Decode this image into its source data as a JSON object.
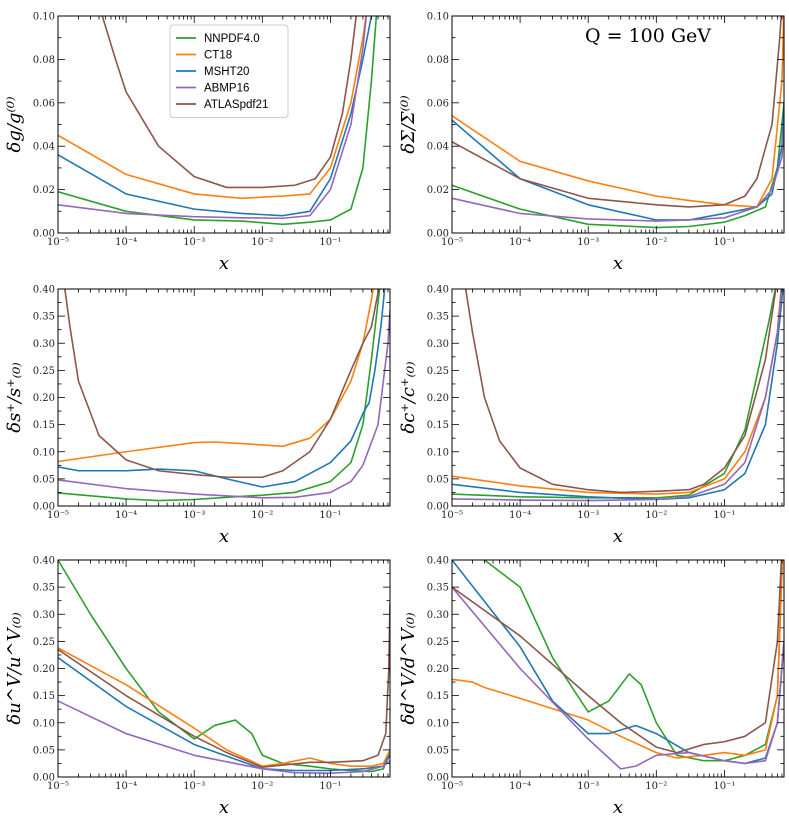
{
  "figure": {
    "annotation": "Q = 100 GeV"
  },
  "legend": [
    {
      "name": "NNPDF4.0",
      "color": "#2ca02c"
    },
    {
      "name": "CT18",
      "color": "#ff7f0e"
    },
    {
      "name": "MSHT20",
      "color": "#1f77b4"
    },
    {
      "name": "ABMP16",
      "color": "#9467bd"
    },
    {
      "name": "ATLASpdf21",
      "color": "#8c564b"
    }
  ],
  "chart_data": [
    {
      "type": "line",
      "id": "gluon",
      "title": "",
      "xlabel": "x",
      "ylabel": "δg/g⁽⁰⁾",
      "xscale": "log",
      "xlim": [
        1e-05,
        0.75
      ],
      "ylim": [
        0,
        0.1
      ],
      "xticks": [
        "10⁻⁵",
        "10⁻⁴",
        "10⁻³",
        "10⁻²",
        "10⁻¹"
      ],
      "yticks": [
        "0.00",
        "0.02",
        "0.04",
        "0.06",
        "0.08",
        "0.10"
      ],
      "series": [
        {
          "name": "NNPDF4.0",
          "x": [
            1e-05,
            0.0001,
            0.001,
            0.005,
            0.02,
            0.05,
            0.1,
            0.2,
            0.3,
            0.4,
            0.5
          ],
          "y": [
            0.019,
            0.01,
            0.006,
            0.0055,
            0.004,
            0.005,
            0.006,
            0.011,
            0.03,
            0.07,
            0.11
          ]
        },
        {
          "name": "CT18",
          "x": [
            1e-05,
            0.0001,
            0.001,
            0.005,
            0.02,
            0.05,
            0.1,
            0.2,
            0.3,
            0.35
          ],
          "y": [
            0.045,
            0.027,
            0.018,
            0.016,
            0.017,
            0.018,
            0.03,
            0.06,
            0.09,
            0.105
          ]
        },
        {
          "name": "MSHT20",
          "x": [
            1e-05,
            0.0001,
            0.001,
            0.005,
            0.02,
            0.05,
            0.1,
            0.2,
            0.3,
            0.4,
            0.45
          ],
          "y": [
            0.036,
            0.018,
            0.011,
            0.009,
            0.008,
            0.01,
            0.025,
            0.055,
            0.08,
            0.1,
            0.105
          ]
        },
        {
          "name": "ABMP16",
          "x": [
            1e-05,
            0.0001,
            0.001,
            0.005,
            0.02,
            0.05,
            0.1,
            0.2,
            0.3,
            0.35
          ],
          "y": [
            0.013,
            0.009,
            0.0075,
            0.007,
            0.0068,
            0.008,
            0.02,
            0.05,
            0.085,
            0.105
          ]
        },
        {
          "name": "ATLASpdf21",
          "x": [
            4e-05,
            7e-05,
            0.0001,
            0.0003,
            0.001,
            0.003,
            0.01,
            0.03,
            0.06,
            0.1,
            0.15,
            0.2,
            0.25
          ],
          "y": [
            0.105,
            0.08,
            0.065,
            0.04,
            0.026,
            0.021,
            0.021,
            0.022,
            0.025,
            0.035,
            0.055,
            0.08,
            0.105
          ]
        }
      ]
    },
    {
      "type": "line",
      "id": "singlet",
      "title": "",
      "xlabel": "x",
      "ylabel": "δΣ/Σ⁽⁰⁾",
      "xscale": "log",
      "xlim": [
        1e-05,
        0.75
      ],
      "ylim": [
        0,
        0.1
      ],
      "xticks": [
        "10⁻⁵",
        "10⁻⁴",
        "10⁻³",
        "10⁻²",
        "10⁻¹"
      ],
      "yticks": [
        "0.00",
        "0.02",
        "0.04",
        "0.06",
        "0.08",
        "0.10"
      ],
      "series": [
        {
          "name": "NNPDF4.0",
          "x": [
            1e-05,
            0.0001,
            0.001,
            0.01,
            0.03,
            0.1,
            0.2,
            0.4,
            0.6,
            0.75
          ],
          "y": [
            0.022,
            0.011,
            0.004,
            0.0025,
            0.003,
            0.005,
            0.008,
            0.012,
            0.03,
            0.06
          ]
        },
        {
          "name": "CT18",
          "x": [
            1e-05,
            0.0001,
            0.001,
            0.01,
            0.03,
            0.1,
            0.3,
            0.5,
            0.7,
            0.75
          ],
          "y": [
            0.054,
            0.033,
            0.024,
            0.017,
            0.015,
            0.013,
            0.012,
            0.025,
            0.07,
            0.105
          ]
        },
        {
          "name": "MSHT20",
          "x": [
            1e-05,
            0.0001,
            0.001,
            0.01,
            0.03,
            0.1,
            0.3,
            0.5,
            0.7,
            0.75
          ],
          "y": [
            0.052,
            0.025,
            0.013,
            0.006,
            0.006,
            0.009,
            0.012,
            0.018,
            0.04,
            0.06
          ]
        },
        {
          "name": "ABMP16",
          "x": [
            1e-05,
            0.0001,
            0.001,
            0.01,
            0.03,
            0.1,
            0.3,
            0.5,
            0.7,
            0.75
          ],
          "y": [
            0.016,
            0.009,
            0.0065,
            0.0055,
            0.006,
            0.007,
            0.012,
            0.02,
            0.035,
            0.05
          ]
        },
        {
          "name": "ATLASpdf21",
          "x": [
            1e-05,
            0.0001,
            0.001,
            0.01,
            0.03,
            0.1,
            0.2,
            0.3,
            0.5,
            0.65,
            0.7
          ],
          "y": [
            0.042,
            0.025,
            0.016,
            0.013,
            0.012,
            0.013,
            0.017,
            0.025,
            0.05,
            0.09,
            0.105
          ]
        }
      ]
    },
    {
      "type": "line",
      "id": "strange",
      "title": "",
      "xlabel": "x",
      "ylabel": "δs⁺/s⁺₍₀₎",
      "xscale": "log",
      "xlim": [
        1e-05,
        0.75
      ],
      "ylim": [
        0,
        0.4
      ],
      "xticks": [
        "10⁻⁵",
        "10⁻⁴",
        "10⁻³",
        "10⁻²",
        "10⁻¹"
      ],
      "yticks": [
        "0.00",
        "0.05",
        "0.10",
        "0.15",
        "0.20",
        "0.25",
        "0.30",
        "0.35",
        "0.40"
      ],
      "series": [
        {
          "name": "NNPDF4.0",
          "x": [
            1e-05,
            0.0001,
            0.0003,
            0.001,
            0.003,
            0.01,
            0.03,
            0.1,
            0.2,
            0.3,
            0.4,
            0.55
          ],
          "y": [
            0.024,
            0.013,
            0.01,
            0.012,
            0.016,
            0.02,
            0.025,
            0.045,
            0.08,
            0.15,
            0.27,
            0.42
          ]
        },
        {
          "name": "CT18",
          "x": [
            1e-05,
            0.0001,
            0.001,
            0.002,
            0.005,
            0.02,
            0.05,
            0.1,
            0.2,
            0.3,
            0.4,
            0.45
          ],
          "y": [
            0.082,
            0.1,
            0.117,
            0.118,
            0.115,
            0.11,
            0.125,
            0.16,
            0.23,
            0.3,
            0.38,
            0.42
          ]
        },
        {
          "name": "MSHT20",
          "x": [
            1e-05,
            2e-05,
            0.0001,
            0.0003,
            0.001,
            0.003,
            0.01,
            0.03,
            0.1,
            0.2,
            0.3,
            0.33,
            0.37,
            0.45,
            0.55,
            0.65
          ],
          "y": [
            0.072,
            0.065,
            0.065,
            0.068,
            0.065,
            0.05,
            0.035,
            0.045,
            0.08,
            0.12,
            0.17,
            0.18,
            0.19,
            0.25,
            0.33,
            0.42
          ]
        },
        {
          "name": "ABMP16",
          "x": [
            1e-05,
            0.0001,
            0.001,
            0.01,
            0.03,
            0.1,
            0.2,
            0.3,
            0.5,
            0.7,
            0.75
          ],
          "y": [
            0.048,
            0.032,
            0.022,
            0.015,
            0.016,
            0.025,
            0.045,
            0.075,
            0.15,
            0.3,
            0.36
          ]
        },
        {
          "name": "ATLASpdf21",
          "x": [
            1.2e-05,
            1.5e-05,
            2e-05,
            4e-05,
            0.0001,
            0.0003,
            0.001,
            0.003,
            0.01,
            0.02,
            0.05,
            0.1,
            0.2,
            0.3,
            0.4,
            0.55
          ],
          "y": [
            0.42,
            0.33,
            0.23,
            0.13,
            0.085,
            0.065,
            0.058,
            0.053,
            0.053,
            0.065,
            0.1,
            0.16,
            0.25,
            0.3,
            0.33,
            0.42
          ]
        }
      ]
    },
    {
      "type": "line",
      "id": "charm",
      "title": "",
      "xlabel": "x",
      "ylabel": "δc⁺/c⁺₍₀₎",
      "xscale": "log",
      "xlim": [
        1e-05,
        0.75
      ],
      "ylim": [
        0,
        0.4
      ],
      "xticks": [
        "10⁻⁵",
        "10⁻⁴",
        "10⁻³",
        "10⁻²",
        "10⁻¹"
      ],
      "yticks": [
        "0.00",
        "0.05",
        "0.10",
        "0.15",
        "0.20",
        "0.25",
        "0.30",
        "0.35",
        "0.40"
      ],
      "series": [
        {
          "name": "NNPDF4.0",
          "x": [
            1e-05,
            0.0001,
            0.001,
            0.01,
            0.03,
            0.1,
            0.2,
            0.3,
            0.45,
            0.6
          ],
          "y": [
            0.022,
            0.017,
            0.015,
            0.015,
            0.02,
            0.06,
            0.14,
            0.24,
            0.34,
            0.42
          ]
        },
        {
          "name": "CT18",
          "x": [
            1e-05,
            0.0001,
            0.001,
            0.01,
            0.03,
            0.1,
            0.2,
            0.4,
            0.6,
            0.7
          ],
          "y": [
            0.055,
            0.037,
            0.025,
            0.022,
            0.025,
            0.05,
            0.1,
            0.2,
            0.32,
            0.42
          ]
        },
        {
          "name": "MSHT20",
          "x": [
            1e-05,
            0.0001,
            0.001,
            0.01,
            0.03,
            0.1,
            0.2,
            0.4,
            0.6,
            0.75
          ],
          "y": [
            0.04,
            0.025,
            0.017,
            0.012,
            0.015,
            0.03,
            0.06,
            0.15,
            0.3,
            0.42
          ]
        },
        {
          "name": "ABMP16",
          "x": [
            1e-05,
            0.0001,
            0.001,
            0.01,
            0.03,
            0.1,
            0.2,
            0.4,
            0.6,
            0.72
          ],
          "y": [
            0.013,
            0.011,
            0.01,
            0.012,
            0.017,
            0.04,
            0.08,
            0.2,
            0.32,
            0.42
          ]
        },
        {
          "name": "ATLASpdf21",
          "x": [
            1.5e-05,
            2e-05,
            3e-05,
            5e-05,
            0.0001,
            0.0003,
            0.001,
            0.003,
            0.01,
            0.03,
            0.05,
            0.1,
            0.2,
            0.4,
            0.6
          ],
          "y": [
            0.42,
            0.32,
            0.2,
            0.12,
            0.07,
            0.04,
            0.03,
            0.025,
            0.027,
            0.03,
            0.04,
            0.07,
            0.13,
            0.27,
            0.42
          ]
        }
      ]
    },
    {
      "type": "line",
      "id": "uvalence",
      "title": "",
      "xlabel": "x",
      "ylabel": "δu^V/u^V₍₀₎",
      "xscale": "log",
      "xlim": [
        1e-05,
        0.75
      ],
      "ylim": [
        0,
        0.4
      ],
      "xticks": [
        "10⁻⁵",
        "10⁻⁴",
        "10⁻³",
        "10⁻²",
        "10⁻¹"
      ],
      "yticks": [
        "0.00",
        "0.05",
        "0.10",
        "0.15",
        "0.20",
        "0.25",
        "0.30",
        "0.35",
        "0.40"
      ],
      "series": [
        {
          "name": "NNPDF4.0",
          "x": [
            1e-05,
            3e-05,
            0.0001,
            0.0003,
            0.001,
            0.002,
            0.004,
            0.007,
            0.01,
            0.02,
            0.05,
            0.1,
            0.2,
            0.4,
            0.6,
            0.75
          ],
          "y": [
            0.4,
            0.3,
            0.2,
            0.12,
            0.07,
            0.095,
            0.105,
            0.08,
            0.04,
            0.025,
            0.02,
            0.015,
            0.012,
            0.01,
            0.015,
            0.05
          ]
        },
        {
          "name": "CT18",
          "x": [
            1e-05,
            0.0001,
            0.001,
            0.003,
            0.01,
            0.02,
            0.05,
            0.1,
            0.2,
            0.4,
            0.6,
            0.75
          ],
          "y": [
            0.238,
            0.17,
            0.09,
            0.05,
            0.02,
            0.025,
            0.035,
            0.025,
            0.02,
            0.02,
            0.025,
            0.05
          ]
        },
        {
          "name": "MSHT20",
          "x": [
            1e-05,
            0.0001,
            0.001,
            0.01,
            0.03,
            0.1,
            0.3,
            0.6,
            0.75
          ],
          "y": [
            0.22,
            0.13,
            0.06,
            0.015,
            0.012,
            0.012,
            0.015,
            0.02,
            0.04
          ]
        },
        {
          "name": "ABMP16",
          "x": [
            1e-05,
            0.0001,
            0.001,
            0.01,
            0.03,
            0.1,
            0.3,
            0.6,
            0.75
          ],
          "y": [
            0.14,
            0.08,
            0.04,
            0.015,
            0.008,
            0.007,
            0.01,
            0.02,
            0.03
          ]
        },
        {
          "name": "ATLASpdf21",
          "x": [
            1e-05,
            0.0001,
            0.001,
            0.003,
            0.01,
            0.02,
            0.05,
            0.1,
            0.3,
            0.5,
            0.65,
            0.72,
            0.75
          ],
          "y": [
            0.235,
            0.15,
            0.075,
            0.045,
            0.018,
            0.022,
            0.027,
            0.027,
            0.03,
            0.04,
            0.08,
            0.2,
            0.32
          ]
        }
      ]
    },
    {
      "type": "line",
      "id": "dvalence",
      "title": "",
      "xlabel": "x",
      "ylabel": "δd^V/d^V₍₀₎",
      "xscale": "log",
      "xlim": [
        1e-05,
        0.75
      ],
      "ylim": [
        0,
        0.4
      ],
      "xticks": [
        "10⁻⁵",
        "10⁻⁴",
        "10⁻³",
        "10⁻²",
        "10⁻¹"
      ],
      "yticks": [
        "0.00",
        "0.05",
        "0.10",
        "0.15",
        "0.20",
        "0.25",
        "0.30",
        "0.35",
        "0.40"
      ],
      "series": [
        {
          "name": "NNPDF4.0",
          "x": [
            3e-05,
            0.0001,
            0.0003,
            0.001,
            0.002,
            0.004,
            0.006,
            0.01,
            0.02,
            0.05,
            0.1,
            0.2,
            0.4,
            0.6,
            0.72
          ],
          "y": [
            0.4,
            0.35,
            0.22,
            0.12,
            0.14,
            0.19,
            0.17,
            0.1,
            0.04,
            0.03,
            0.03,
            0.04,
            0.06,
            0.15,
            0.42
          ]
        },
        {
          "name": "CT18",
          "x": [
            1e-05,
            2e-05,
            3e-05,
            0.0001,
            0.001,
            0.003,
            0.01,
            0.02,
            0.05,
            0.1,
            0.2,
            0.4,
            0.6,
            0.72
          ],
          "y": [
            0.18,
            0.175,
            0.165,
            0.145,
            0.105,
            0.075,
            0.045,
            0.035,
            0.04,
            0.045,
            0.04,
            0.05,
            0.15,
            0.42
          ]
        },
        {
          "name": "MSHT20",
          "x": [
            1e-05,
            0.0001,
            0.0003,
            0.001,
            0.002,
            0.005,
            0.01,
            0.03,
            0.1,
            0.2,
            0.4,
            0.6,
            0.75
          ],
          "y": [
            0.4,
            0.24,
            0.14,
            0.08,
            0.08,
            0.095,
            0.08,
            0.045,
            0.03,
            0.025,
            0.035,
            0.1,
            0.25
          ]
        },
        {
          "name": "ABMP16",
          "x": [
            1e-05,
            0.0001,
            0.001,
            0.003,
            0.005,
            0.01,
            0.03,
            0.1,
            0.2,
            0.4,
            0.6,
            0.75
          ],
          "y": [
            0.35,
            0.2,
            0.07,
            0.015,
            0.02,
            0.04,
            0.045,
            0.03,
            0.025,
            0.03,
            0.1,
            0.25
          ]
        },
        {
          "name": "ATLASpdf21",
          "x": [
            1e-05,
            0.0001,
            0.001,
            0.003,
            0.01,
            0.02,
            0.05,
            0.1,
            0.2,
            0.4,
            0.6,
            0.7
          ],
          "y": [
            0.35,
            0.26,
            0.15,
            0.1,
            0.055,
            0.045,
            0.06,
            0.065,
            0.075,
            0.1,
            0.25,
            0.42
          ]
        }
      ]
    }
  ]
}
